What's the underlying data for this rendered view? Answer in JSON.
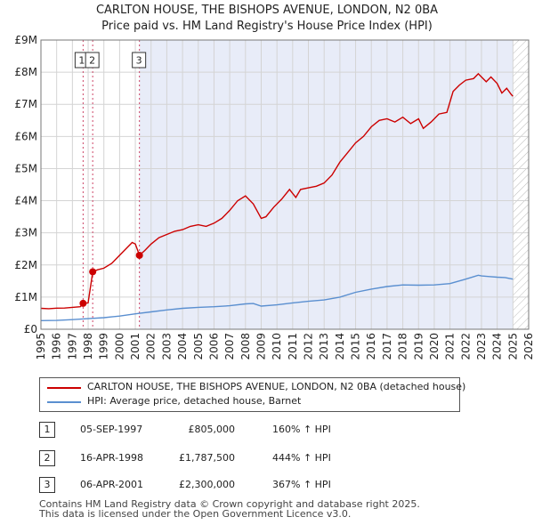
{
  "header": {
    "title_line1": "CARLTON HOUSE, THE BISHOPS AVENUE, LONDON, N2 0BA",
    "title_line2": "Price paid vs. HM Land Registry's House Price Index (HPI)"
  },
  "colors": {
    "property": "#cc0000",
    "hpi": "#5a8fd0",
    "marker_line": "#cc4466",
    "shade": "#e8ecf8",
    "grid": "#d4d4d4",
    "forecast_hatch": "#bbbbbb"
  },
  "legend": {
    "property_label": "CARLTON HOUSE, THE BISHOPS AVENUE, LONDON, N2 0BA (detached house)",
    "hpi_label": "HPI: Average price, detached house, Barnet"
  },
  "sales": [
    {
      "num": "1",
      "date": "05-SEP-1997",
      "price": "£805,000",
      "hpi": "160% ↑ HPI"
    },
    {
      "num": "2",
      "date": "16-APR-1998",
      "price": "£1,787,500",
      "hpi": "444% ↑ HPI"
    },
    {
      "num": "3",
      "date": "06-APR-2001",
      "price": "£2,300,000",
      "hpi": "367% ↑ HPI"
    }
  ],
  "footer": {
    "line1": "Contains HM Land Registry data © Crown copyright and database right 2025.",
    "line2": "This data is licensed under the Open Government Licence v3.0."
  },
  "chart_data": {
    "type": "line",
    "title": "CARLTON HOUSE, THE BISHOPS AVENUE, LONDON, N2 0BA",
    "subtitle": "Price paid vs. HM Land Registry's House Price Index (HPI)",
    "xlabel": "",
    "ylabel": "",
    "xlim": [
      1995,
      2026
    ],
    "ylim": [
      0,
      9000000
    ],
    "x_ticks": [
      1995,
      1996,
      1997,
      1998,
      1999,
      2000,
      2001,
      2002,
      2003,
      2004,
      2005,
      2006,
      2007,
      2008,
      2009,
      2010,
      2011,
      2012,
      2013,
      2014,
      2015,
      2016,
      2017,
      2018,
      2019,
      2020,
      2021,
      2022,
      2023,
      2024,
      2025,
      2026
    ],
    "y_ticks": [
      0,
      1000000,
      2000000,
      3000000,
      4000000,
      5000000,
      6000000,
      7000000,
      8000000,
      9000000
    ],
    "y_tick_labels": [
      "£0",
      "£1M",
      "£2M",
      "£3M",
      "£4M",
      "£5M",
      "£6M",
      "£7M",
      "£8M",
      "£9M"
    ],
    "grid": true,
    "shaded_region": [
      2001.26,
      2025.0
    ],
    "forecast_from": 2025.0,
    "sale_markers": [
      {
        "label": "1",
        "x": 1997.68,
        "y": 805000
      },
      {
        "label": "2",
        "x": 1998.29,
        "y": 1787500
      },
      {
        "label": "3",
        "x": 2001.26,
        "y": 2300000
      }
    ],
    "series": [
      {
        "name": "CARLTON HOUSE, THE BISHOPS AVENUE, LONDON, N2 0BA (detached house)",
        "x": [
          1995.0,
          1995.5,
          1996.0,
          1996.5,
          1997.0,
          1997.5,
          1997.68,
          1998.0,
          1998.29,
          1998.6,
          1999.0,
          1999.5,
          2000.0,
          2000.5,
          2000.8,
          2001.0,
          2001.26,
          2001.6,
          2002.0,
          2002.5,
          2003.0,
          2003.5,
          2004.0,
          2004.5,
          2005.0,
          2005.5,
          2006.0,
          2006.5,
          2007.0,
          2007.5,
          2008.0,
          2008.5,
          2009.0,
          2009.3,
          2009.8,
          2010.3,
          2010.8,
          2011.2,
          2011.5,
          2012.0,
          2012.5,
          2013.0,
          2013.5,
          2014.0,
          2014.5,
          2015.0,
          2015.5,
          2016.0,
          2016.5,
          2017.0,
          2017.5,
          2018.0,
          2018.5,
          2019.0,
          2019.3,
          2019.8,
          2020.3,
          2020.8,
          2021.2,
          2021.6,
          2022.0,
          2022.5,
          2022.8,
          2023.0,
          2023.3,
          2023.6,
          2024.0,
          2024.3,
          2024.6,
          2024.9,
          2025.0
        ],
        "values": [
          650000,
          640000,
          655000,
          660000,
          680000,
          700000,
          805000,
          820000,
          1787500,
          1850000,
          1900000,
          2050000,
          2300000,
          2550000,
          2700000,
          2650000,
          2300000,
          2450000,
          2650000,
          2850000,
          2950000,
          3050000,
          3100000,
          3200000,
          3250000,
          3200000,
          3300000,
          3450000,
          3700000,
          4000000,
          4150000,
          3900000,
          3450000,
          3500000,
          3800000,
          4050000,
          4350000,
          4100000,
          4350000,
          4400000,
          4450000,
          4550000,
          4800000,
          5200000,
          5500000,
          5800000,
          6000000,
          6300000,
          6500000,
          6550000,
          6450000,
          6600000,
          6400000,
          6550000,
          6250000,
          6450000,
          6700000,
          6750000,
          7400000,
          7600000,
          7750000,
          7800000,
          7950000,
          7850000,
          7700000,
          7850000,
          7650000,
          7350000,
          7500000,
          7300000,
          7250000
        ]
      },
      {
        "name": "HPI: Average price, detached house, Barnet",
        "x": [
          1995.0,
          1996.0,
          1997.0,
          1998.0,
          1999.0,
          2000.0,
          2001.0,
          2002.0,
          2003.0,
          2004.0,
          2005.0,
          2006.0,
          2007.0,
          2008.0,
          2008.5,
          2009.0,
          2010.0,
          2011.0,
          2012.0,
          2013.0,
          2014.0,
          2015.0,
          2016.0,
          2017.0,
          2018.0,
          2019.0,
          2020.0,
          2021.0,
          2022.0,
          2022.8,
          2023.0,
          2023.5,
          2024.0,
          2024.5,
          2025.0
        ],
        "values": [
          270000,
          275000,
          300000,
          330000,
          360000,
          410000,
          480000,
          540000,
          600000,
          650000,
          680000,
          700000,
          730000,
          790000,
          800000,
          720000,
          760000,
          820000,
          870000,
          910000,
          1000000,
          1150000,
          1250000,
          1330000,
          1380000,
          1370000,
          1380000,
          1420000,
          1560000,
          1680000,
          1660000,
          1640000,
          1620000,
          1610000,
          1560000
        ]
      }
    ]
  }
}
